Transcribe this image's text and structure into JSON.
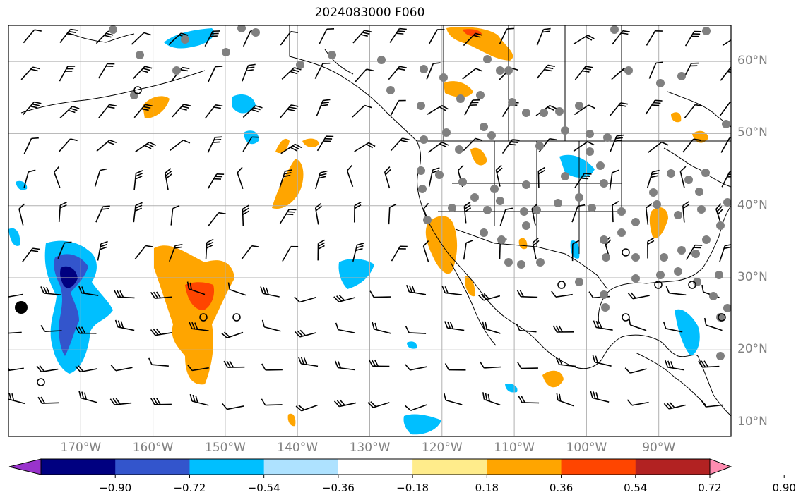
{
  "title": "2024083000 F060",
  "lat_labels": [
    {
      "text": "60°N",
      "lat": 60
    },
    {
      "text": "50°N",
      "lat": 50
    },
    {
      "text": "40°N",
      "lat": 40
    },
    {
      "text": "30°N",
      "lat": 30
    },
    {
      "text": "20°N",
      "lat": 20
    },
    {
      "text": "10°N",
      "lat": 10
    }
  ],
  "lon_labels": [
    {
      "text": "170°W",
      "lon": -170
    },
    {
      "text": "160°W",
      "lon": -160
    },
    {
      "text": "150°W",
      "lon": -150
    },
    {
      "text": "140°W",
      "lon": -140
    },
    {
      "text": "130°W",
      "lon": -130
    },
    {
      "text": "120°W",
      "lon": -120
    },
    {
      "text": "110°W",
      "lon": -110
    },
    {
      "text": "100°W",
      "lon": -100
    },
    {
      "text": "90°W",
      "lon": -90
    }
  ],
  "map_extent": {
    "lon_min": -180,
    "lon_max": -80,
    "lat_min": 8,
    "lat_max": 65
  },
  "colorbar": {
    "colors": [
      "#9933cc",
      "#000080",
      "#3355cc",
      "#00bfff",
      "#aee2ff",
      "#ffffff",
      "#ffec8b",
      "#ffa500",
      "#ff4500",
      "#b22222",
      "#ff8cb0"
    ],
    "tick_labels": [
      "−0.90",
      "−0.72",
      "−0.54",
      "−0.36",
      "−0.18",
      "0.18",
      "0.36",
      "0.54",
      "0.72",
      "0.90"
    ],
    "extend": "both"
  }
}
